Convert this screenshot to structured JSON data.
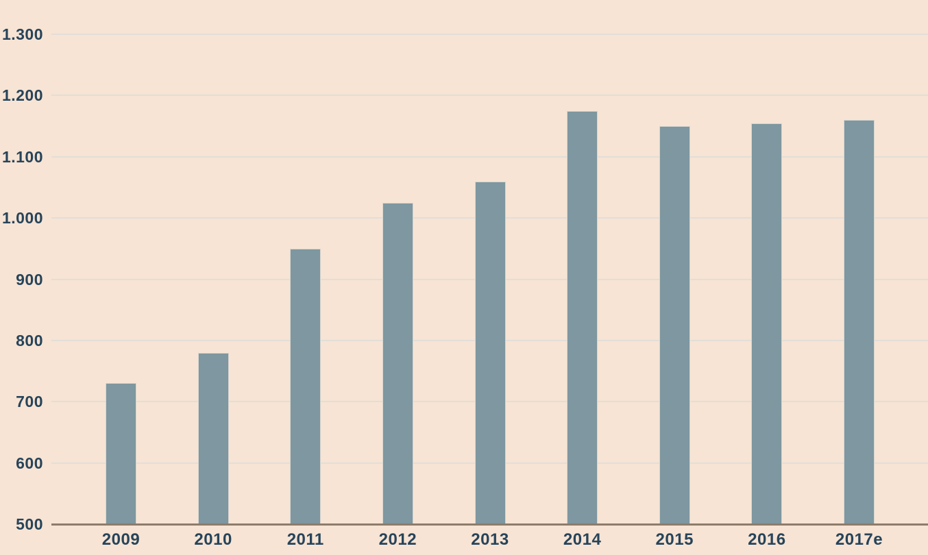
{
  "chart_data": {
    "type": "bar",
    "title": "",
    "xlabel": "",
    "ylabel": "",
    "categories": [
      "2009",
      "2010",
      "2011",
      "2012",
      "2013",
      "2014",
      "2015",
      "2016",
      "2017e"
    ],
    "values": [
      730,
      780,
      950,
      1025,
      1060,
      1175,
      1150,
      1155,
      1160
    ],
    "ylim": [
      500,
      1300
    ],
    "yticks": [
      {
        "value": 500,
        "label": "500"
      },
      {
        "value": 600,
        "label": "600"
      },
      {
        "value": 700,
        "label": "700"
      },
      {
        "value": 800,
        "label": "800"
      },
      {
        "value": 900,
        "label": "900"
      },
      {
        "value": 1000,
        "label": "1.000"
      },
      {
        "value": 1100,
        "label": "1.100"
      },
      {
        "value": 1200,
        "label": "1.200"
      },
      {
        "value": 1300,
        "label": "1.300"
      }
    ],
    "grid": true,
    "legend": false,
    "colors": {
      "background": "#f7e4d4",
      "bar": "#7e97a0",
      "bar_stroke": "#d8d5cf",
      "gridline": "#e2ded9",
      "axis": "#8d7c6a",
      "text": "#27445a"
    }
  }
}
